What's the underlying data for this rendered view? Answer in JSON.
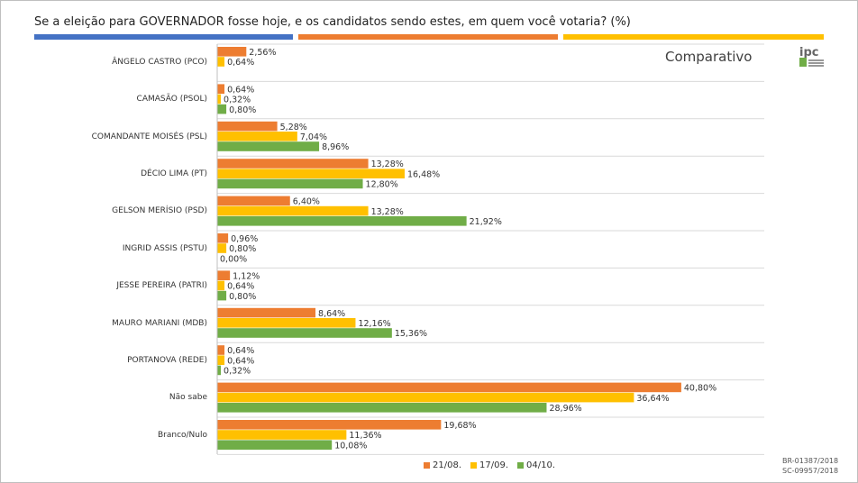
{
  "page": {
    "title": "Se a eleição para GOVERNADOR fosse hoje, e os candidatos sendo estes, em quem você votaria? (%)",
    "subtitle": "Comparativo",
    "logo_text": "ipc",
    "registrations": [
      "BR-01387/2018",
      "SC-09957/2018"
    ],
    "stripe_colors": [
      "#4472c4",
      "#ed7d31",
      "#ffc000"
    ]
  },
  "chart_data": {
    "type": "bar",
    "orientation": "horizontal",
    "title": "Se a eleição para GOVERNADOR fosse hoje, e os candidatos sendo estes, em quem você votaria? (%)",
    "categories": [
      "ÂNGELO CASTRO (PCO)",
      "CAMASÃO (PSOL)",
      "COMANDANTE MOISÉS (PSL)",
      "DÉCIO LIMA (PT)",
      "GELSON MERÍSIO (PSD)",
      "INGRID ASSIS (PSTU)",
      "JESSE PEREIRA (PATRI)",
      "MAURO MARIANI (MDB)",
      "PORTANOVA (REDE)",
      "Não sabe",
      "Branco/Nulo"
    ],
    "series": [
      {
        "name": "21/08.",
        "color": "#ed7d31",
        "values": [
          2.56,
          0.64,
          5.28,
          13.28,
          6.4,
          0.96,
          1.12,
          8.64,
          0.64,
          40.8,
          19.68
        ],
        "labels": [
          "2,56%",
          "0,64%",
          "5,28%",
          "13,28%",
          "6,40%",
          "0,96%",
          "1,12%",
          "8,64%",
          "0,64%",
          "40,80%",
          "19,68%"
        ]
      },
      {
        "name": "17/09.",
        "color": "#ffc000",
        "values": [
          0.64,
          0.32,
          7.04,
          16.48,
          13.28,
          0.8,
          0.64,
          12.16,
          0.64,
          36.64,
          11.36
        ],
        "labels": [
          "0,64%",
          "0,32%",
          "7,04%",
          "16,48%",
          "13,28%",
          "0,80%",
          "0,64%",
          "12,16%",
          "0,64%",
          "36,64%",
          "11,36%"
        ]
      },
      {
        "name": "04/10.",
        "color": "#70ad47",
        "values": [
          null,
          0.8,
          8.96,
          12.8,
          21.92,
          0.0,
          0.8,
          15.36,
          0.32,
          28.96,
          10.08
        ],
        "labels": [
          null,
          "0,80%",
          "8,96%",
          "12,80%",
          "21,92%",
          "0,00%",
          "0,80%",
          "15,36%",
          "0,32%",
          "28,96%",
          "10,08%"
        ]
      }
    ],
    "xlim": [
      0,
      50
    ],
    "grid": false,
    "legend_position": "bottom"
  }
}
